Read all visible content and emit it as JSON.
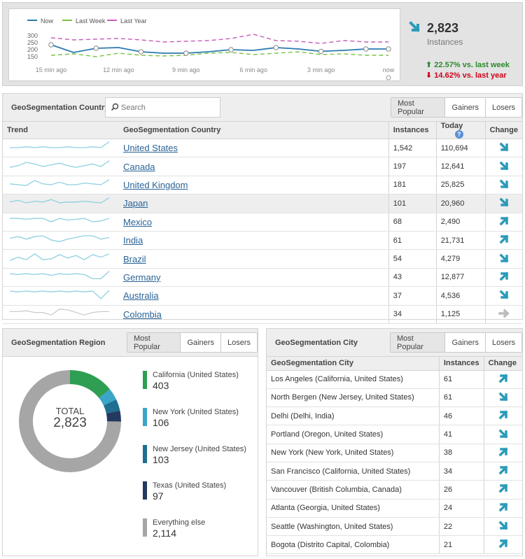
{
  "summary": {
    "value": "2,823",
    "label": "Instances",
    "vs_week": "22.57% vs. last week",
    "vs_year": "14.62% vs. last year",
    "trend": "down",
    "colors": {
      "trend": "#2a9bb8",
      "up": "#2b8a2b",
      "down": "#d0021b"
    }
  },
  "chart_data": {
    "type": "line",
    "title": "",
    "legend": [
      "Now",
      "Last Week",
      "Last Year"
    ],
    "categories": [
      "15 min ago",
      "",
      "",
      "12 min ago",
      "",
      "",
      "9 min ago",
      "",
      "",
      "6 min ago",
      "",
      "",
      "3 min ago",
      "",
      "",
      "now"
    ],
    "x_tick_labels": [
      "15 min ago",
      "12 min ago",
      "9 min ago",
      "6 min ago",
      "3 min ago",
      "now"
    ],
    "y_ticks": [
      150,
      200,
      250,
      300
    ],
    "ylim": [
      130,
      320
    ],
    "series": [
      {
        "name": "Now",
        "color": "#2a7ab0",
        "values": [
          235,
          180,
          210,
          215,
          185,
          175,
          175,
          185,
          200,
          195,
          215,
          205,
          188,
          195,
          205,
          205
        ]
      },
      {
        "name": "Last Week",
        "color": "#7dc242",
        "values": [
          160,
          170,
          150,
          175,
          160,
          155,
          160,
          175,
          180,
          165,
          175,
          185,
          165,
          170,
          160,
          160
        ]
      },
      {
        "name": "Last Year",
        "color": "#c85bb8",
        "values": [
          285,
          270,
          275,
          280,
          270,
          255,
          260,
          265,
          280,
          310,
          265,
          260,
          245,
          265,
          255,
          255
        ]
      }
    ]
  },
  "country": {
    "title": "GeoSegmentation Country",
    "search_placeholder": "Search",
    "tabs": [
      "Most Popular",
      "Gainers",
      "Losers"
    ],
    "columns": {
      "trend": "Trend",
      "name": "GeoSegmentation Country",
      "instances": "Instances",
      "today": "Today",
      "change": "Change"
    },
    "rows": [
      {
        "name": "United States",
        "instances": "1,542",
        "today": "110,694",
        "change": "down",
        "spark": [
          5,
          5,
          6,
          5,
          6,
          5,
          5,
          6,
          5,
          5,
          6,
          5,
          12
        ]
      },
      {
        "name": "Canada",
        "instances": "197",
        "today": "12,641",
        "change": "down",
        "spark": [
          4,
          6,
          10,
          8,
          5,
          7,
          9,
          6,
          4,
          6,
          8,
          5,
          12
        ]
      },
      {
        "name": "United Kingdom",
        "instances": "181",
        "today": "25,825",
        "change": "down",
        "spark": [
          6,
          5,
          4,
          10,
          6,
          5,
          8,
          5,
          5,
          7,
          6,
          5,
          11
        ]
      },
      {
        "name": "Japan",
        "instances": "101",
        "today": "20,960",
        "change": "down",
        "spark": [
          6,
          8,
          5,
          7,
          6,
          9,
          5,
          6,
          6,
          7,
          6,
          5,
          11
        ]
      },
      {
        "name": "Mexico",
        "instances": "68",
        "today": "2,490",
        "change": "up",
        "spark": [
          9,
          9,
          8,
          9,
          9,
          5,
          9,
          7,
          8,
          9,
          5,
          6,
          9
        ]
      },
      {
        "name": "India",
        "instances": "61",
        "today": "21,731",
        "change": "up",
        "spark": [
          7,
          9,
          6,
          9,
          10,
          5,
          3,
          6,
          8,
          10,
          10,
          6,
          8
        ]
      },
      {
        "name": "Brazil",
        "instances": "54",
        "today": "4,279",
        "change": "down",
        "spark": [
          3,
          7,
          4,
          11,
          4,
          5,
          10,
          6,
          9,
          4,
          10,
          7,
          11
        ]
      },
      {
        "name": "Germany",
        "instances": "43",
        "today": "12,877",
        "change": "up",
        "spark": [
          9,
          8,
          9,
          8,
          9,
          7,
          9,
          8,
          9,
          8,
          3,
          3,
          12
        ]
      },
      {
        "name": "Australia",
        "instances": "37",
        "today": "4,536",
        "change": "down",
        "spark": [
          10,
          9,
          10,
          9,
          10,
          9,
          10,
          9,
          10,
          9,
          10,
          1,
          11
        ]
      },
      {
        "name": "Colombia",
        "instances": "34",
        "today": "1,125",
        "change": "flat",
        "spark": [
          8,
          8,
          9,
          7,
          7,
          4,
          11,
          10,
          7,
          4,
          7,
          8,
          8
        ]
      }
    ]
  },
  "region": {
    "title": "GeoSegmentation Region",
    "tabs": [
      "Most Popular",
      "Gainers",
      "Losers"
    ],
    "total_label": "TOTAL",
    "total_value": "2,823",
    "items": [
      {
        "label": "California (United States)",
        "value": "403",
        "amount": 403,
        "color": "#2e9e52"
      },
      {
        "label": "New York (United States)",
        "value": "106",
        "amount": 106,
        "color": "#3aa5c9"
      },
      {
        "label": "New Jersey (United States)",
        "value": "103",
        "amount": 103,
        "color": "#1e6f91"
      },
      {
        "label": "Texas (United States)",
        "value": "97",
        "amount": 97,
        "color": "#24395f"
      },
      {
        "label": "Everything else",
        "value": "2,114",
        "amount": 2114,
        "color": "#a6a6a6"
      }
    ]
  },
  "city": {
    "title": "GeoSegmentation City",
    "tabs": [
      "Most Popular",
      "Gainers",
      "Losers"
    ],
    "columns": {
      "name": "GeoSegmentation City",
      "instances": "Instances",
      "change": "Change"
    },
    "rows": [
      {
        "name": "Los Angeles (California, United States)",
        "instances": "61",
        "change": "up"
      },
      {
        "name": "North Bergen (New Jersey, United States)",
        "instances": "61",
        "change": "down"
      },
      {
        "name": "Delhi (Delhi, India)",
        "instances": "46",
        "change": "up"
      },
      {
        "name": "Portland (Oregon, United States)",
        "instances": "41",
        "change": "down"
      },
      {
        "name": "New York (New York, United States)",
        "instances": "38",
        "change": "up"
      },
      {
        "name": "San Francisco (California, United States)",
        "instances": "34",
        "change": "up"
      },
      {
        "name": "Vancouver (British Columbia, Canada)",
        "instances": "26",
        "change": "up"
      },
      {
        "name": "Atlanta (Georgia, United States)",
        "instances": "24",
        "change": "up"
      },
      {
        "name": "Seattle (Washington, United States)",
        "instances": "22",
        "change": "down"
      },
      {
        "name": "Bogota (Distrito Capital, Colombia)",
        "instances": "21",
        "change": "up"
      }
    ]
  }
}
